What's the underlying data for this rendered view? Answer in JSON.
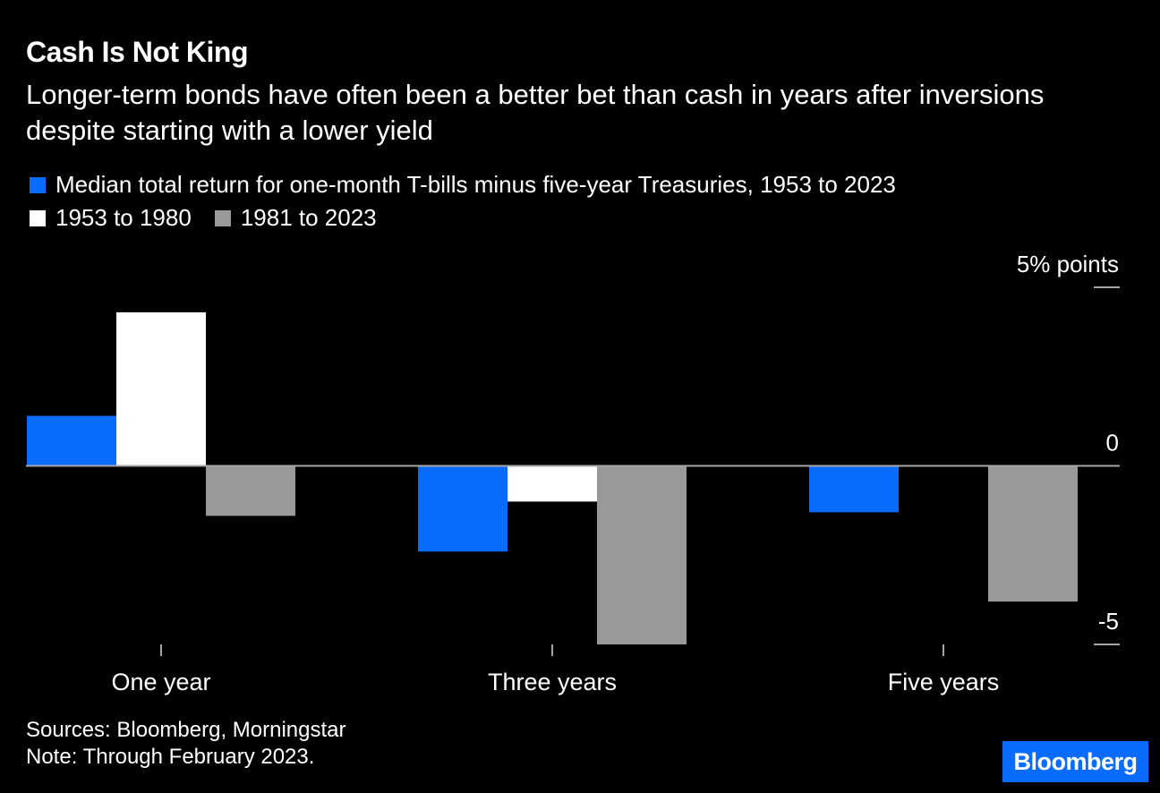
{
  "chart_data": {
    "type": "bar",
    "title": "Cash Is Not King",
    "subtitle": "Longer-term bonds have often been a better bet than cash in years after inversions despite starting with a lower yield",
    "categories": [
      "One year",
      "Three years",
      "Five years"
    ],
    "series": [
      {
        "name": "Median total return for one-month T-bills minus five-year Treasuries, 1953 to 2023",
        "color": "#0a6cff",
        "values": [
          1.4,
          -2.4,
          -1.3
        ]
      },
      {
        "name": "1953 to 1980",
        "color": "#ffffff",
        "values": [
          4.3,
          -1.0,
          0.0
        ]
      },
      {
        "name": "1981 to 2023",
        "color": "#999999",
        "values": [
          -1.4,
          -5.0,
          -3.8
        ]
      }
    ],
    "y_unit_label": "5% points",
    "y_ticks": [
      {
        "value": 5,
        "label": "5% points"
      },
      {
        "value": 0,
        "label": "0"
      },
      {
        "value": -5,
        "label": "-5"
      }
    ],
    "ylim": [
      -5,
      5
    ],
    "xlabel": "",
    "ylabel": "",
    "grid": false,
    "legend_position": "top-left"
  },
  "footer": {
    "sources": "Sources: Bloomberg, Morningstar",
    "note": "Note: Through February 2023."
  },
  "logo_text": "Bloomberg",
  "colors": {
    "background": "#000000",
    "blue": "#0a6cff",
    "white": "#ffffff",
    "gray": "#999999",
    "zero_line": "#a6a6a6"
  }
}
